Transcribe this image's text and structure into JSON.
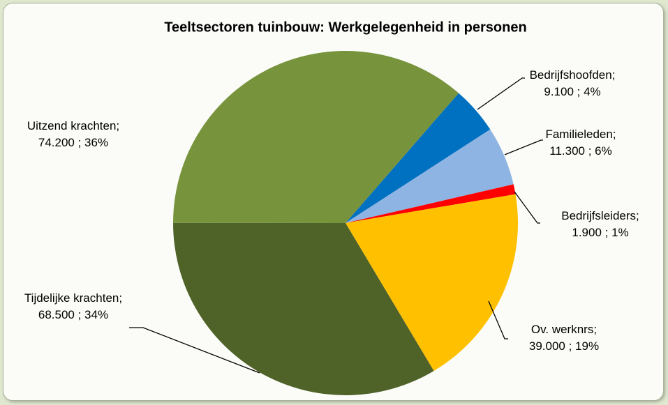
{
  "chart_data": {
    "type": "pie",
    "title": "Teeltsectoren tuinbouw: Werkgelegenheid in personen",
    "categories": [
      "Bedrijfshoofden;",
      "Familieleden;",
      "Bedrijfsleiders;",
      "Ov. werknrs;",
      "Tijdelijke krachten;",
      "Uitzend krachten;"
    ],
    "values": [
      9100,
      11300,
      1900,
      39000,
      68500,
      74200
    ],
    "value_labels": [
      "9.100 ; 4%",
      "11.300 ; 6%",
      "1.900 ; 1%",
      "39.000 ; 19%",
      "68.500 ; 34%",
      "74.200 ; 36%"
    ],
    "colors": [
      "#0070c0",
      "#8db4e2",
      "#ff0000",
      "#ffc000",
      "#4f6228",
      "#77933c"
    ]
  }
}
